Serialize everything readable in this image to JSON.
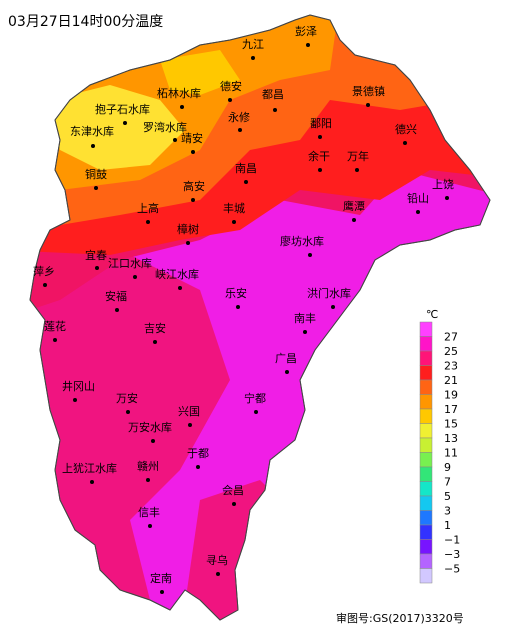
{
  "title": "03月27日14时00分温度",
  "footer": "审图号:GS(2017)3320号",
  "cities": [
    "彭泽",
    "九江",
    "柘林水库",
    "德安",
    "都昌",
    "景德镇",
    "抱子石水库",
    "东津水库",
    "罗湾水库",
    "永修",
    "鄱阳",
    "德兴",
    "靖安",
    "余干",
    "万年",
    "铜鼓",
    "南昌",
    "上饶",
    "高安",
    "铅山",
    "上高",
    "丰城",
    "鹰潭",
    "樟树",
    "廖坊水库",
    "宜春",
    "江口水库",
    "萍乡",
    "峡江水库",
    "乐安",
    "洪门水库",
    "安福",
    "南丰",
    "莲花",
    "吉安",
    "广昌",
    "井冈山",
    "万安",
    "宁都",
    "兴国",
    "万安水库",
    "于都",
    "上犹江水库",
    "赣州",
    "会昌",
    "信丰",
    "寻乌",
    "定南"
  ],
  "legend": {
    "unit": "℃",
    "ticks": [
      "27",
      "25",
      "23",
      "21",
      "19",
      "17",
      "15",
      "13",
      "11",
      "9",
      "7",
      "5",
      "3",
      "1",
      "−1",
      "−3",
      "−5"
    ],
    "colors": [
      "#ff40ff",
      "#ff14c8",
      "#ff1478",
      "#ff1e1e",
      "#ff6414",
      "#ff9600",
      "#ffc800",
      "#f0f032",
      "#c8f032",
      "#78f050",
      "#32e678",
      "#14e6c8",
      "#14c8f0",
      "#1e78ff",
      "#3232ff",
      "#7814ff",
      "#b464ff",
      "#d2c8ff"
    ]
  }
}
